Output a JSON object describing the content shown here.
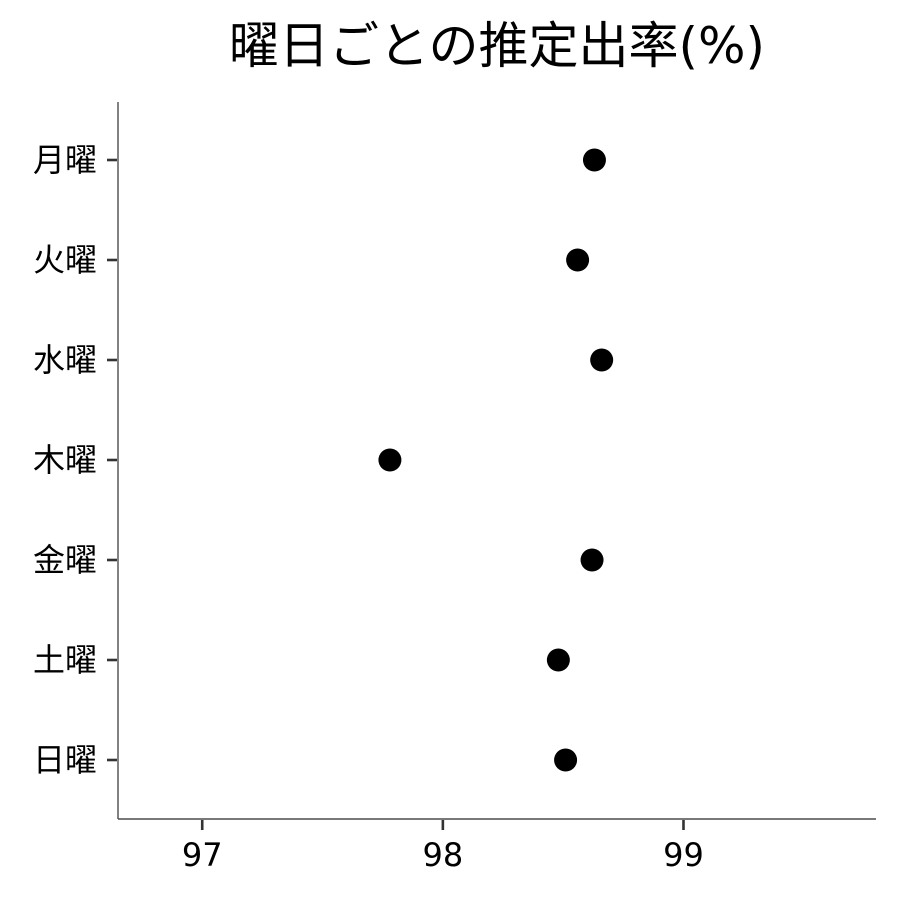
{
  "chart_data": {
    "type": "scatter",
    "title": "曜日ごとの推定出率(%)",
    "xlabel": "",
    "ylabel": "",
    "categories": [
      "月曜",
      "火曜",
      "水曜",
      "木曜",
      "金曜",
      "土曜",
      "日曜"
    ],
    "values": [
      98.63,
      98.56,
      98.66,
      97.78,
      98.62,
      98.48,
      98.51
    ],
    "xlim": [
      96.65,
      99.8
    ],
    "xticks": [
      97,
      98,
      99
    ],
    "xtick_labels": [
      "97",
      "98",
      "99"
    ],
    "grid": false,
    "legend": "none",
    "point_color": "#000000"
  }
}
